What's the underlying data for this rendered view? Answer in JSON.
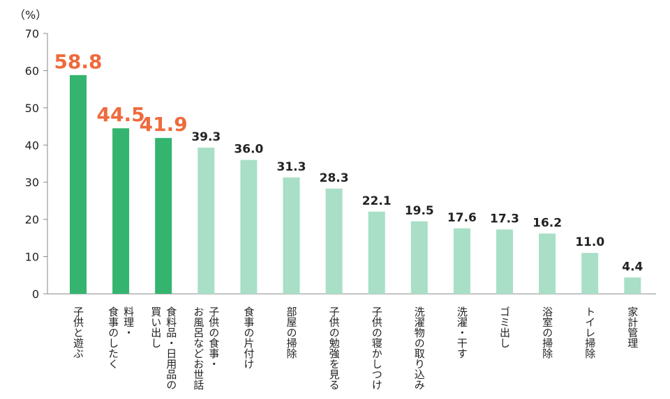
{
  "chart_data": {
    "type": "bar",
    "unit_label": "（%）",
    "ylim": [
      0,
      70
    ],
    "yticks": [
      "0",
      "10",
      "20",
      "30",
      "40",
      "50",
      "60",
      "70"
    ],
    "grid": false,
    "categories": [
      [
        "子供と遊ぶ"
      ],
      [
        "料理・",
        "食事のしたく"
      ],
      [
        "食料品・日用品の",
        "買い出し"
      ],
      [
        "子供の食事・",
        "お風呂などお世話"
      ],
      [
        "食事の片付け"
      ],
      [
        "部屋の掃除"
      ],
      [
        "子供の勉強を見る"
      ],
      [
        "子供の寝かしつけ"
      ],
      [
        "洗濯物の取り込み"
      ],
      [
        "洗濯・干す"
      ],
      [
        "ゴミ出し"
      ],
      [
        "浴室の掃除"
      ],
      [
        "トイレ掃除"
      ],
      [
        "家計管理"
      ]
    ],
    "values": [
      58.8,
      44.5,
      41.9,
      39.3,
      36.0,
      31.3,
      28.3,
      22.1,
      19.5,
      17.6,
      17.3,
      16.2,
      11.0,
      4.4
    ],
    "value_labels": [
      "58.8",
      "44.5",
      "41.9",
      "39.3",
      "36.0",
      "31.3",
      "28.3",
      "22.1",
      "19.5",
      "17.6",
      "17.3",
      "16.2",
      "11.0",
      "4.4"
    ],
    "highlight_count": 3,
    "colors": {
      "highlight_bar": "#34b46e",
      "normal_bar": "#a8dfc6",
      "highlight_label": "#ef6a3c",
      "normal_label": "#222222",
      "axis": "#888888"
    }
  }
}
